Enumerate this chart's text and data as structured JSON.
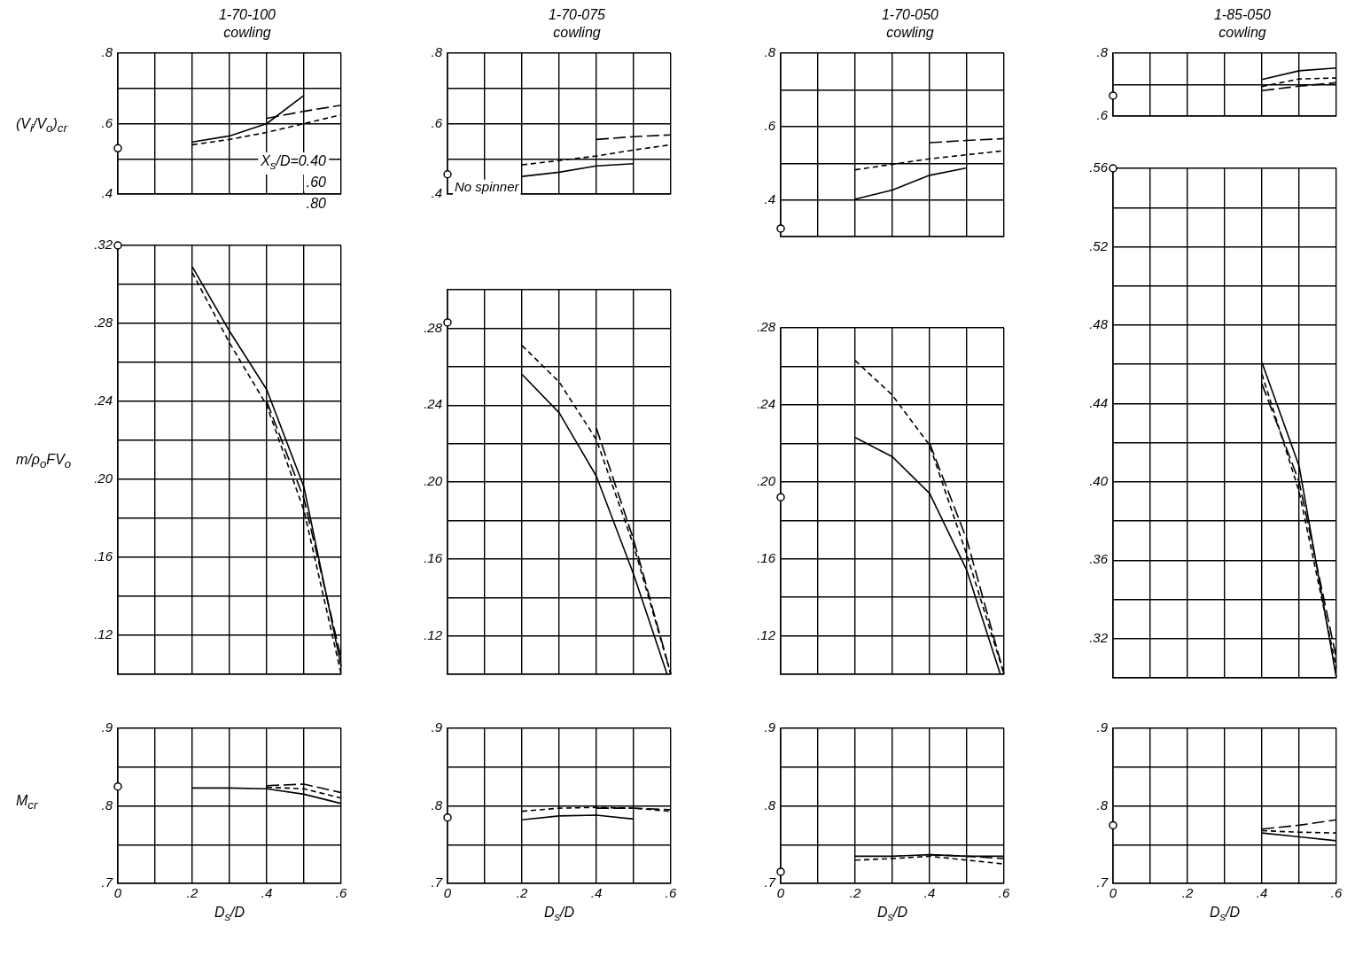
{
  "chart_data": [
    {
      "type": "line",
      "title": "1-70-100",
      "subtitle": "cowling",
      "ylabel": "(V$_{i}$/V$_{o}$)$_{cr}$",
      "xlim": [
        0,
        0.6
      ],
      "ylim": [
        0.4,
        0.8
      ],
      "xticks": [
        {
          "value": 0,
          "label": null
        },
        {
          "value": 0.1,
          "label": null
        },
        {
          "value": 0.2,
          "label": null
        },
        {
          "value": 0.3,
          "label": null
        },
        {
          "value": 0.4,
          "label": null
        },
        {
          "value": 0.5,
          "label": null
        },
        {
          "value": 0.6,
          "label": null
        }
      ],
      "yticks": [
        {
          "value": 0.4,
          "label": ".4"
        },
        {
          "value": 0.5,
          "label": null
        },
        {
          "value": 0.6,
          "label": ".6"
        },
        {
          "value": 0.7,
          "label": null
        },
        {
          "value": 0.8,
          "label": ".8"
        }
      ],
      "tick_labels": "y",
      "grid": true,
      "legend": false,
      "annotations": [
        "X$_{s}$/D=0.40",
        ".60",
        ".80"
      ],
      "series": [
        {
          "type": "line",
          "color": "#000000",
          "line_style": "solid",
          "x": [
            0.2,
            0.3,
            0.4,
            0.5
          ],
          "values": [
            0.548,
            0.565,
            0.6,
            0.68
          ]
        },
        {
          "type": "line",
          "color": "#000000",
          "line_style": "dashed",
          "x": [
            0.2,
            0.3,
            0.4,
            0.5,
            0.6
          ],
          "values": [
            0.54,
            0.555,
            0.575,
            0.6,
            0.625
          ]
        },
        {
          "type": "line",
          "color": "#000000",
          "line_style": "dashed",
          "x": [
            0.4,
            0.5,
            0.6
          ],
          "values": [
            0.615,
            0.635,
            0.652
          ]
        },
        {
          "type": "scatter",
          "color": "#000000",
          "marker": "circle",
          "x": [
            0
          ],
          "values": [
            0.53
          ]
        }
      ]
    },
    {
      "type": "line",
      "title": "1-70-075",
      "subtitle": "cowling",
      "xlim": [
        0,
        0.6
      ],
      "ylim": [
        0.4,
        0.8
      ],
      "xticks": [
        {
          "value": 0,
          "label": null
        },
        {
          "value": 0.1,
          "label": null
        },
        {
          "value": 0.2,
          "label": null
        },
        {
          "value": 0.3,
          "label": null
        },
        {
          "value": 0.4,
          "label": null
        },
        {
          "value": 0.5,
          "label": null
        },
        {
          "value": 0.6,
          "label": null
        }
      ],
      "yticks": [
        {
          "value": 0.4,
          "label": ".4"
        },
        {
          "value": 0.5,
          "label": null
        },
        {
          "value": 0.6,
          "label": ".6"
        },
        {
          "value": 0.7,
          "label": null
        },
        {
          "value": 0.8,
          "label": ".8"
        }
      ],
      "tick_labels": "y",
      "grid": true,
      "legend": false,
      "annotations": [
        {
          "text": "No spinner",
          "x": 0,
          "y": 0.456
        }
      ],
      "series": [
        {
          "type": "line",
          "color": "#000000",
          "line_style": "solid",
          "x": [
            0.2,
            0.3,
            0.4,
            0.5
          ],
          "values": [
            0.45,
            0.462,
            0.48,
            0.486
          ]
        },
        {
          "type": "line",
          "color": "#000000",
          "line_style": "dashed",
          "x": [
            0.2,
            0.3,
            0.4,
            0.5,
            0.6
          ],
          "values": [
            0.483,
            0.495,
            0.508,
            0.525,
            0.54
          ]
        },
        {
          "type": "line",
          "color": "#000000",
          "line_style": "dashed",
          "x": [
            0.4,
            0.5,
            0.6
          ],
          "values": [
            0.555,
            0.563,
            0.568
          ]
        },
        {
          "type": "scatter",
          "color": "#000000",
          "marker": "circle",
          "x": [
            0
          ],
          "values": [
            0.456
          ]
        }
      ]
    },
    {
      "type": "line",
      "title": "1-70-050",
      "subtitle": "cowling",
      "xlim": [
        0,
        0.6
      ],
      "ylim": [
        0.3,
        0.8
      ],
      "xticks": [
        {
          "value": 0,
          "label": null
        },
        {
          "value": 0.1,
          "label": null
        },
        {
          "value": 0.2,
          "label": null
        },
        {
          "value": 0.3,
          "label": null
        },
        {
          "value": 0.4,
          "label": null
        },
        {
          "value": 0.5,
          "label": null
        },
        {
          "value": 0.6,
          "label": null
        }
      ],
      "yticks": [
        {
          "value": 0.3,
          "label": null
        },
        {
          "value": 0.4,
          "label": ".4"
        },
        {
          "value": 0.5,
          "label": null
        },
        {
          "value": 0.6,
          "label": ".6"
        },
        {
          "value": 0.7,
          "label": null
        },
        {
          "value": 0.8,
          "label": ".8"
        }
      ],
      "tick_labels": "y",
      "grid": true,
      "legend": false,
      "series": [
        {
          "type": "line",
          "color": "#000000",
          "line_style": "solid",
          "x": [
            0.2,
            0.3,
            0.4,
            0.5
          ],
          "values": [
            0.402,
            0.427,
            0.467,
            0.487
          ]
        },
        {
          "type": "line",
          "color": "#000000",
          "line_style": "dashed",
          "x": [
            0.2,
            0.3,
            0.4,
            0.5,
            0.6
          ],
          "values": [
            0.482,
            0.497,
            0.512,
            0.523,
            0.534
          ]
        },
        {
          "type": "line",
          "color": "#000000",
          "line_style": "dashed",
          "x": [
            0.4,
            0.5,
            0.6
          ],
          "values": [
            0.556,
            0.562,
            0.567
          ]
        },
        {
          "type": "scatter",
          "color": "#000000",
          "marker": "circle",
          "x": [
            0
          ],
          "values": [
            0.322
          ]
        }
      ]
    },
    {
      "type": "line",
      "title": "1-85-050",
      "subtitle": "cowling",
      "xlim": [
        0,
        0.6
      ],
      "ylim": [
        0.6,
        0.8
      ],
      "xticks": [
        {
          "value": 0,
          "label": null
        },
        {
          "value": 0.1,
          "label": null
        },
        {
          "value": 0.2,
          "label": null
        },
        {
          "value": 0.3,
          "label": null
        },
        {
          "value": 0.4,
          "label": null
        },
        {
          "value": 0.5,
          "label": null
        },
        {
          "value": 0.6,
          "label": null
        }
      ],
      "yticks": [
        {
          "value": 0.6,
          "label": ".6"
        },
        {
          "value": 0.7,
          "label": null
        },
        {
          "value": 0.8,
          "label": ".8"
        }
      ],
      "tick_labels": "y",
      "grid": true,
      "legend": false,
      "series": [
        {
          "type": "line",
          "color": "#000000",
          "line_style": "solid",
          "x": [
            0.4,
            0.5,
            0.6
          ],
          "values": [
            0.716,
            0.744,
            0.753
          ]
        },
        {
          "type": "line",
          "color": "#000000",
          "line_style": "dashed",
          "x": [
            0.4,
            0.5,
            0.6
          ],
          "values": [
            0.694,
            0.718,
            0.721
          ]
        },
        {
          "type": "line",
          "color": "#000000",
          "line_style": "dashed",
          "x": [
            0.4,
            0.5,
            0.6
          ],
          "values": [
            0.681,
            0.695,
            0.706
          ]
        },
        {
          "type": "scatter",
          "color": "#000000",
          "marker": "circle",
          "x": [
            0
          ],
          "values": [
            0.665
          ]
        }
      ]
    },
    {
      "type": "line",
      "ylabel": "m/ρ$_{o}$FV$_{o}$",
      "xlim": [
        0,
        0.6
      ],
      "ylim": [
        0.1,
        0.32
      ],
      "xticks": [
        {
          "value": 0,
          "label": null
        },
        {
          "value": 0.1,
          "label": null
        },
        {
          "value": 0.2,
          "label": null
        },
        {
          "value": 0.3,
          "label": null
        },
        {
          "value": 0.4,
          "label": null
        },
        {
          "value": 0.5,
          "label": null
        },
        {
          "value": 0.6,
          "label": null
        }
      ],
      "yticks": [
        {
          "value": 0.1,
          "label": null
        },
        {
          "value": 0.12,
          "label": ".12"
        },
        {
          "value": 0.14,
          "label": null
        },
        {
          "value": 0.16,
          "label": ".16"
        },
        {
          "value": 0.18,
          "label": null
        },
        {
          "value": 0.2,
          "label": ".20"
        },
        {
          "value": 0.22,
          "label": null
        },
        {
          "value": 0.24,
          "label": ".24"
        },
        {
          "value": 0.26,
          "label": null
        },
        {
          "value": 0.28,
          "label": ".28"
        },
        {
          "value": 0.3,
          "label": null
        },
        {
          "value": 0.32,
          "label": ".32"
        }
      ],
      "tick_labels": "y",
      "grid": true,
      "legend": false,
      "series": [
        {
          "type": "line",
          "color": "#000000",
          "line_style": "solid",
          "x": [
            0.2,
            0.3,
            0.4,
            0.5,
            0.6
          ],
          "values": [
            0.309,
            0.276,
            0.246,
            0.196,
            0.104
          ]
        },
        {
          "type": "line",
          "color": "#000000",
          "line_style": "dashed",
          "x": [
            0.2,
            0.3,
            0.4,
            0.5,
            0.6
          ],
          "values": [
            0.306,
            0.27,
            0.238,
            0.184,
            0.1
          ]
        },
        {
          "type": "line",
          "color": "#000000",
          "line_style": "dashed",
          "x": [
            0.4,
            0.5,
            0.6
          ],
          "values": [
            0.24,
            0.19,
            0.108
          ]
        },
        {
          "type": "scatter",
          "color": "#000000",
          "marker": "circle",
          "x": [
            0
          ],
          "values": [
            0.32
          ]
        }
      ]
    },
    {
      "type": "line",
      "xlim": [
        0,
        0.6
      ],
      "ylim": [
        0.1,
        0.3
      ],
      "xticks": [
        {
          "value": 0,
          "label": null
        },
        {
          "value": 0.1,
          "label": null
        },
        {
          "value": 0.2,
          "label": null
        },
        {
          "value": 0.3,
          "label": null
        },
        {
          "value": 0.4,
          "label": null
        },
        {
          "value": 0.5,
          "label": null
        },
        {
          "value": 0.6,
          "label": null
        }
      ],
      "yticks": [
        {
          "value": 0.1,
          "label": null
        },
        {
          "value": 0.12,
          "label": ".12"
        },
        {
          "value": 0.14,
          "label": null
        },
        {
          "value": 0.16,
          "label": ".16"
        },
        {
          "value": 0.18,
          "label": null
        },
        {
          "value": 0.2,
          "label": ".20"
        },
        {
          "value": 0.22,
          "label": null
        },
        {
          "value": 0.24,
          "label": ".24"
        },
        {
          "value": 0.26,
          "label": null
        },
        {
          "value": 0.28,
          "label": ".28"
        },
        {
          "value": 0.3,
          "label": null
        }
      ],
      "tick_labels": "y",
      "grid": true,
      "legend": false,
      "series": [
        {
          "type": "line",
          "color": "#000000",
          "line_style": "solid",
          "x": [
            0.2,
            0.3,
            0.4,
            0.5,
            0.59
          ],
          "values": [
            0.256,
            0.236,
            0.203,
            0.152,
            0.1
          ]
        },
        {
          "type": "line",
          "color": "#000000",
          "line_style": "dashed",
          "x": [
            0.2,
            0.3,
            0.4,
            0.5,
            0.6
          ],
          "values": [
            0.271,
            0.252,
            0.222,
            0.167,
            0.1
          ]
        },
        {
          "type": "line",
          "color": "#000000",
          "line_style": "dashed",
          "x": [
            0.4,
            0.5,
            0.6
          ],
          "values": [
            0.228,
            0.17,
            0.1
          ]
        },
        {
          "type": "scatter",
          "color": "#000000",
          "marker": "circle",
          "x": [
            0
          ],
          "values": [
            0.283
          ]
        }
      ]
    },
    {
      "type": "line",
      "xlim": [
        0,
        0.6
      ],
      "ylim": [
        0.1,
        0.28
      ],
      "xticks": [
        {
          "value": 0,
          "label": null
        },
        {
          "value": 0.1,
          "label": null
        },
        {
          "value": 0.2,
          "label": null
        },
        {
          "value": 0.3,
          "label": null
        },
        {
          "value": 0.4,
          "label": null
        },
        {
          "value": 0.5,
          "label": null
        },
        {
          "value": 0.6,
          "label": null
        }
      ],
      "yticks": [
        {
          "value": 0.1,
          "label": null
        },
        {
          "value": 0.12,
          "label": ".12"
        },
        {
          "value": 0.14,
          "label": null
        },
        {
          "value": 0.16,
          "label": ".16"
        },
        {
          "value": 0.18,
          "label": null
        },
        {
          "value": 0.2,
          "label": ".20"
        },
        {
          "value": 0.22,
          "label": null
        },
        {
          "value": 0.24,
          "label": ".24"
        },
        {
          "value": 0.26,
          "label": null
        },
        {
          "value": 0.28,
          "label": ".28"
        }
      ],
      "tick_labels": "y",
      "grid": true,
      "legend": false,
      "series": [
        {
          "type": "line",
          "color": "#000000",
          "line_style": "solid",
          "x": [
            0.2,
            0.3,
            0.4,
            0.5,
            0.59
          ],
          "values": [
            0.223,
            0.213,
            0.194,
            0.154,
            0.1
          ]
        },
        {
          "type": "line",
          "color": "#000000",
          "line_style": "dashed",
          "x": [
            0.2,
            0.3,
            0.4,
            0.5,
            0.6
          ],
          "values": [
            0.263,
            0.245,
            0.219,
            0.162,
            0.1
          ]
        },
        {
          "type": "line",
          "color": "#000000",
          "line_style": "dashed",
          "x": [
            0.4,
            0.5,
            0.6
          ],
          "values": [
            0.22,
            0.17,
            0.1
          ]
        },
        {
          "type": "scatter",
          "color": "#000000",
          "marker": "circle",
          "x": [
            0
          ],
          "values": [
            0.192
          ]
        }
      ]
    },
    {
      "type": "line",
      "xlim": [
        0,
        0.6
      ],
      "ylim": [
        0.3,
        0.56
      ],
      "xticks": [
        {
          "value": 0,
          "label": null
        },
        {
          "value": 0.1,
          "label": null
        },
        {
          "value": 0.2,
          "label": null
        },
        {
          "value": 0.3,
          "label": null
        },
        {
          "value": 0.4,
          "label": null
        },
        {
          "value": 0.5,
          "label": null
        },
        {
          "value": 0.6,
          "label": null
        }
      ],
      "yticks": [
        {
          "value": 0.3,
          "label": null
        },
        {
          "value": 0.32,
          "label": ".32"
        },
        {
          "value": 0.34,
          "label": null
        },
        {
          "value": 0.36,
          "label": ".36"
        },
        {
          "value": 0.38,
          "label": null
        },
        {
          "value": 0.4,
          "label": ".40"
        },
        {
          "value": 0.42,
          "label": null
        },
        {
          "value": 0.44,
          "label": ".44"
        },
        {
          "value": 0.46,
          "label": null
        },
        {
          "value": 0.48,
          "label": ".48"
        },
        {
          "value": 0.5,
          "label": null
        },
        {
          "value": 0.52,
          "label": ".52"
        },
        {
          "value": 0.54,
          "label": null
        },
        {
          "value": 0.56,
          "label": ".56"
        }
      ],
      "tick_labels": "y",
      "grid": true,
      "legend": false,
      "series": [
        {
          "type": "line",
          "color": "#000000",
          "line_style": "solid",
          "x": [
            0.4,
            0.5,
            0.6
          ],
          "values": [
            0.461,
            0.408,
            0.3
          ]
        },
        {
          "type": "line",
          "color": "#000000",
          "line_style": "dashed",
          "x": [
            0.4,
            0.5,
            0.6
          ],
          "values": [
            0.455,
            0.395,
            0.305
          ]
        },
        {
          "type": "line",
          "color": "#000000",
          "line_style": "dashed",
          "x": [
            0.4,
            0.5,
            0.6
          ],
          "values": [
            0.45,
            0.4,
            0.31
          ]
        },
        {
          "type": "scatter",
          "color": "#000000",
          "marker": "circle",
          "x": [
            0
          ],
          "values": [
            0.56
          ]
        }
      ]
    },
    {
      "type": "line",
      "ylabel": "M$_{cr}$",
      "xlabel": "D$_{s}$/D",
      "xlim": [
        0,
        0.6
      ],
      "ylim": [
        0.7,
        0.9
      ],
      "xticks": [
        {
          "value": 0,
          "label": "0"
        },
        {
          "value": 0.1,
          "label": null
        },
        {
          "value": 0.2,
          "label": ".2"
        },
        {
          "value": 0.3,
          "label": null
        },
        {
          "value": 0.4,
          "label": ".4"
        },
        {
          "value": 0.5,
          "label": null
        },
        {
          "value": 0.6,
          "label": ".6"
        }
      ],
      "yticks": [
        {
          "value": 0.7,
          "label": ".7"
        },
        {
          "value": 0.75,
          "label": null
        },
        {
          "value": 0.8,
          "label": ".8"
        },
        {
          "value": 0.85,
          "label": null
        },
        {
          "value": 0.9,
          "label": ".9"
        }
      ],
      "grid": true,
      "legend": false,
      "series": [
        {
          "type": "line",
          "color": "#000000",
          "line_style": "solid",
          "x": [
            0.2,
            0.3,
            0.4,
            0.5,
            0.6
          ],
          "values": [
            0.823,
            0.823,
            0.822,
            0.815,
            0.803
          ]
        },
        {
          "type": "line",
          "color": "#000000",
          "line_style": "dashed",
          "x": [
            0.4,
            0.5,
            0.6
          ],
          "values": [
            0.824,
            0.822,
            0.81
          ]
        },
        {
          "type": "line",
          "color": "#000000",
          "line_style": "dashed",
          "x": [
            0.4,
            0.5,
            0.6
          ],
          "values": [
            0.826,
            0.828,
            0.817
          ]
        },
        {
          "type": "scatter",
          "color": "#000000",
          "marker": "circle",
          "x": [
            0
          ],
          "values": [
            0.825
          ]
        }
      ]
    },
    {
      "type": "line",
      "xlabel": "D$_{s}$/D",
      "xlim": [
        0,
        0.6
      ],
      "ylim": [
        0.7,
        0.9
      ],
      "xticks": [
        {
          "value": 0,
          "label": "0"
        },
        {
          "value": 0.1,
          "label": null
        },
        {
          "value": 0.2,
          "label": ".2"
        },
        {
          "value": 0.3,
          "label": null
        },
        {
          "value": 0.4,
          "label": ".4"
        },
        {
          "value": 0.5,
          "label": null
        },
        {
          "value": 0.6,
          "label": ".6"
        }
      ],
      "yticks": [
        {
          "value": 0.7,
          "label": ".7"
        },
        {
          "value": 0.75,
          "label": null
        },
        {
          "value": 0.8,
          "label": ".8"
        },
        {
          "value": 0.85,
          "label": null
        },
        {
          "value": 0.9,
          "label": ".9"
        }
      ],
      "grid": true,
      "legend": false,
      "series": [
        {
          "type": "line",
          "color": "#000000",
          "line_style": "solid",
          "x": [
            0.2,
            0.3,
            0.4,
            0.5
          ],
          "values": [
            0.782,
            0.787,
            0.788,
            0.783
          ]
        },
        {
          "type": "line",
          "color": "#000000",
          "line_style": "dashed",
          "x": [
            0.2,
            0.3,
            0.4,
            0.5,
            0.6
          ],
          "values": [
            0.793,
            0.797,
            0.798,
            0.797,
            0.793
          ]
        },
        {
          "type": "line",
          "color": "#000000",
          "line_style": "dashed",
          "x": [
            0.4,
            0.5,
            0.6
          ],
          "values": [
            0.797,
            0.797,
            0.795
          ]
        },
        {
          "type": "scatter",
          "color": "#000000",
          "marker": "circle",
          "x": [
            0
          ],
          "values": [
            0.785
          ]
        }
      ]
    },
    {
      "type": "line",
      "xlabel": "D$_{s}$/D",
      "xlim": [
        0,
        0.6
      ],
      "ylim": [
        0.7,
        0.9
      ],
      "xticks": [
        {
          "value": 0,
          "label": "0"
        },
        {
          "value": 0.1,
          "label": null
        },
        {
          "value": 0.2,
          "label": ".2"
        },
        {
          "value": 0.3,
          "label": null
        },
        {
          "value": 0.4,
          "label": ".4"
        },
        {
          "value": 0.5,
          "label": null
        },
        {
          "value": 0.6,
          "label": ".6"
        }
      ],
      "yticks": [
        {
          "value": 0.7,
          "label": ".7"
        },
        {
          "value": 0.75,
          "label": null
        },
        {
          "value": 0.8,
          "label": ".8"
        },
        {
          "value": 0.85,
          "label": null
        },
        {
          "value": 0.9,
          "label": ".9"
        }
      ],
      "grid": true,
      "legend": false,
      "series": [
        {
          "type": "line",
          "color": "#000000",
          "line_style": "solid",
          "x": [
            0.2,
            0.3,
            0.4,
            0.5,
            0.6
          ],
          "values": [
            0.735,
            0.735,
            0.737,
            0.735,
            0.735
          ]
        },
        {
          "type": "line",
          "color": "#000000",
          "line_style": "dashed",
          "x": [
            0.2,
            0.3,
            0.4,
            0.5,
            0.6
          ],
          "values": [
            0.73,
            0.732,
            0.735,
            0.73,
            0.725
          ]
        },
        {
          "type": "line",
          "color": "#000000",
          "line_style": "dashed",
          "x": [
            0.4,
            0.5,
            0.6
          ],
          "values": [
            0.737,
            0.735,
            0.732
          ]
        },
        {
          "type": "scatter",
          "color": "#000000",
          "marker": "circle",
          "x": [
            0
          ],
          "values": [
            0.715
          ]
        }
      ]
    },
    {
      "type": "line",
      "xlabel": "D$_{s}$/D",
      "xlim": [
        0,
        0.6
      ],
      "ylim": [
        0.7,
        0.9
      ],
      "xticks": [
        {
          "value": 0,
          "label": "0"
        },
        {
          "value": 0.1,
          "label": null
        },
        {
          "value": 0.2,
          "label": ".2"
        },
        {
          "value": 0.3,
          "label": null
        },
        {
          "value": 0.4,
          "label": ".4"
        },
        {
          "value": 0.5,
          "label": null
        },
        {
          "value": 0.6,
          "label": ".6"
        }
      ],
      "yticks": [
        {
          "value": 0.7,
          "label": ".7"
        },
        {
          "value": 0.75,
          "label": null
        },
        {
          "value": 0.8,
          "label": ".8"
        },
        {
          "value": 0.85,
          "label": null
        },
        {
          "value": 0.9,
          "label": ".9"
        }
      ],
      "grid": true,
      "legend": false,
      "series": [
        {
          "type": "line",
          "color": "#000000",
          "line_style": "solid",
          "x": [
            0.4,
            0.5,
            0.6
          ],
          "values": [
            0.765,
            0.76,
            0.755
          ]
        },
        {
          "type": "line",
          "color": "#000000",
          "line_style": "dashed",
          "x": [
            0.4,
            0.5,
            0.6
          ],
          "values": [
            0.768,
            0.766,
            0.765
          ]
        },
        {
          "type": "line",
          "color": "#000000",
          "line_style": "dashed",
          "x": [
            0.4,
            0.5,
            0.6
          ],
          "values": [
            0.77,
            0.775,
            0.782
          ]
        },
        {
          "type": "scatter",
          "color": "#000000",
          "marker": "circle",
          "x": [
            0
          ],
          "values": [
            0.775
          ]
        }
      ]
    }
  ]
}
